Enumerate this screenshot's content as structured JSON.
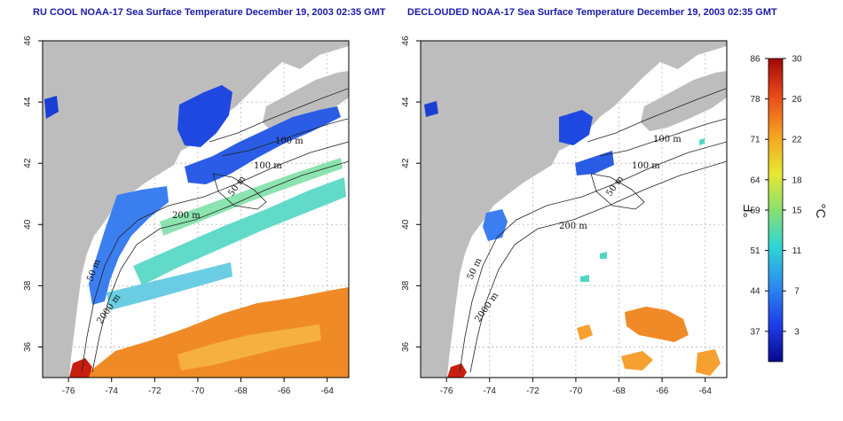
{
  "titles": {
    "left": "RU COOL NOAA-17 Sea Surface Temperature December 19, 2003 02:35 GMT",
    "right": "DECLOUDED NOAA-17 Sea Surface Temperature December 19, 2003 02:35 GMT"
  },
  "axes": {
    "lon_ticks": [
      -76,
      -74,
      -72,
      -70,
      -68,
      -66,
      -64
    ],
    "lon_labels": [
      "-76",
      "-74",
      "-72",
      "-70",
      "-68",
      "-66",
      "-64"
    ],
    "lat_ticks": [
      36,
      38,
      40,
      42,
      44,
      46
    ],
    "lat_labels": [
      "36",
      "38",
      "40",
      "42",
      "44",
      "46"
    ],
    "lon_range": [
      -77.2,
      -63.0
    ],
    "lat_range": [
      35.0,
      46.0
    ]
  },
  "contours": {
    "labels": [
      "100 m",
      "100 m",
      "50 m",
      "200 m",
      "50 m",
      "2000 m"
    ]
  },
  "colorbar": {
    "fahrenheit_labels": [
      "86",
      "78",
      "71",
      "64",
      "59",
      "51",
      "44",
      "37"
    ],
    "celsius_labels": [
      "30",
      "26",
      "22",
      "18",
      "15",
      "11",
      "7",
      "3"
    ],
    "unit_f": "°F",
    "unit_c": "°C",
    "celsius_range": [
      0,
      30
    ],
    "colors": [
      "#08088c",
      "#1e3ce8",
      "#2c8cf0",
      "#2ed6d6",
      "#88e070",
      "#e8e830",
      "#f5a020",
      "#e84818",
      "#a00808"
    ]
  },
  "colors": {
    "land": "#bdbdbd",
    "ocean_nodata": "#ffffff",
    "cold": "#2850e0",
    "mid": "#4fd8c8",
    "warm": "#f08c28",
    "title": "#1a1aa8"
  }
}
